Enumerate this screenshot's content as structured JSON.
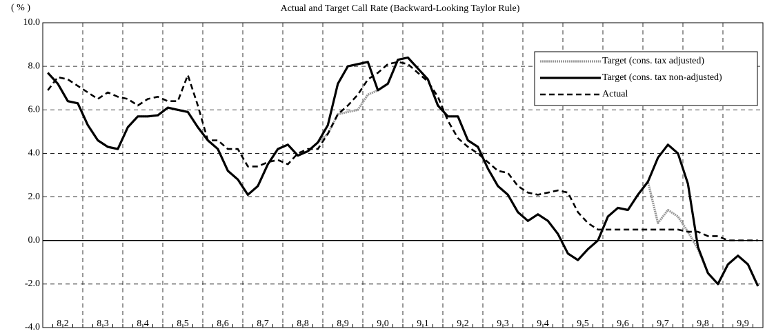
{
  "chart_data": {
    "type": "line",
    "title": "Actual and Target Call Rate (Backward-Looking Taylor Rule)",
    "y_unit": "( % )",
    "categories": [
      "8 2",
      "8 3",
      "8 4",
      "8 5",
      "8 6",
      "8 7",
      "8 8",
      "8 9",
      "9 0",
      "9 1",
      "9 2",
      "9 3",
      "9 4",
      "9 5",
      "9 6",
      "9 7",
      "9 8",
      "9 9"
    ],
    "ylim": [
      -4,
      10
    ],
    "yticks": [
      {
        "value": -4,
        "label": "-4.0"
      },
      {
        "value": -2,
        "label": "-2.0"
      },
      {
        "value": 0,
        "label": "0.0"
      },
      {
        "value": 2,
        "label": "2.0"
      },
      {
        "value": 4,
        "label": "4.0"
      },
      {
        "value": 6,
        "label": "6.0"
      },
      {
        "value": 8,
        "label": "8.0"
      },
      {
        "value": 10,
        "label": "10.0"
      }
    ],
    "grid": true,
    "legend": "upper right",
    "series": [
      {
        "name": "Target (cons. tax adjusted)",
        "color": "#999999",
        "style": "dotted",
        "values": [
          [
            7.7,
            7.2,
            6.4,
            6.3
          ],
          [
            5.3,
            4.6,
            4.3,
            4.2
          ],
          [
            5.2,
            5.7,
            5.7,
            5.75
          ],
          [
            6.1,
            6.0,
            5.9,
            5.2
          ],
          [
            4.6,
            4.2,
            3.2,
            2.8
          ],
          [
            2.1,
            2.5,
            3.5,
            4.2
          ],
          [
            4.4,
            3.9,
            4.1,
            4.5
          ],
          [
            4.9,
            5.8,
            5.9,
            6.0
          ],
          [
            6.7,
            6.9,
            7.2,
            8.3
          ],
          [
            8.4,
            7.9,
            7.4,
            6.2
          ],
          [
            5.7,
            5.7,
            4.6,
            4.3
          ],
          [
            3.3,
            2.5,
            2.1,
            1.3
          ],
          [
            0.9,
            1.2,
            0.9,
            0.3
          ],
          [
            -0.6,
            -0.9,
            -0.4,
            0.0
          ],
          [
            1.1,
            1.5,
            1.4,
            2.1
          ],
          [
            2.7,
            0.8,
            1.4,
            1.1
          ],
          [
            0.4,
            -0.4,
            -1.5,
            -2.0
          ],
          [
            -1.1,
            -0.7,
            -1.1,
            -2.1
          ]
        ]
      },
      {
        "name": "Target (cons. tax non-adjusted)",
        "color": "#000000",
        "style": "solid",
        "values": [
          [
            7.7,
            7.2,
            6.4,
            6.3
          ],
          [
            5.3,
            4.6,
            4.3,
            4.2
          ],
          [
            5.2,
            5.7,
            5.7,
            5.75
          ],
          [
            6.1,
            6.0,
            5.9,
            5.2
          ],
          [
            4.6,
            4.2,
            3.2,
            2.8
          ],
          [
            2.1,
            2.5,
            3.5,
            4.2
          ],
          [
            4.4,
            3.9,
            4.1,
            4.5
          ],
          [
            5.3,
            7.2,
            8.0,
            8.1
          ],
          [
            8.2,
            6.9,
            7.2,
            8.3
          ],
          [
            8.4,
            7.9,
            7.4,
            6.2
          ],
          [
            5.7,
            5.7,
            4.6,
            4.3
          ],
          [
            3.3,
            2.5,
            2.1,
            1.3
          ],
          [
            0.9,
            1.2,
            0.9,
            0.3
          ],
          [
            -0.6,
            -0.9,
            -0.4,
            0.0
          ],
          [
            1.1,
            1.5,
            1.4,
            2.1
          ],
          [
            2.7,
            3.8,
            4.4,
            4.0
          ],
          [
            2.6,
            -0.3,
            -1.5,
            -2.0
          ],
          [
            -1.1,
            -0.7,
            -1.1,
            -2.1
          ]
        ]
      },
      {
        "name": "Actual",
        "color": "#000000",
        "style": "dashed",
        "values": [
          [
            6.9,
            7.5,
            7.4,
            7.1
          ],
          [
            6.8,
            6.5,
            6.8,
            6.6
          ],
          [
            6.5,
            6.2,
            6.5,
            6.6
          ],
          [
            6.4,
            6.4,
            7.6,
            6.2
          ],
          [
            4.6,
            4.6,
            4.2,
            4.2
          ],
          [
            3.4,
            3.4,
            3.6,
            3.7
          ],
          [
            3.5,
            4.0,
            4.2,
            4.2
          ],
          [
            4.9,
            5.8,
            6.2,
            6.7
          ],
          [
            7.4,
            7.7,
            8.1,
            8.2
          ],
          [
            8.1,
            7.7,
            7.3,
            6.6
          ],
          [
            5.5,
            4.7,
            4.3,
            4.0
          ],
          [
            3.6,
            3.2,
            3.1,
            2.5
          ],
          [
            2.2,
            2.1,
            2.2,
            2.3
          ],
          [
            2.2,
            1.3,
            0.8,
            0.5
          ],
          [
            0.5,
            0.5,
            0.5,
            0.5
          ],
          [
            0.5,
            0.5,
            0.5,
            0.5
          ],
          [
            0.4,
            0.4,
            0.2,
            0.2
          ],
          [
            0.0,
            0.0,
            0.0,
            0.0
          ]
        ]
      }
    ]
  }
}
